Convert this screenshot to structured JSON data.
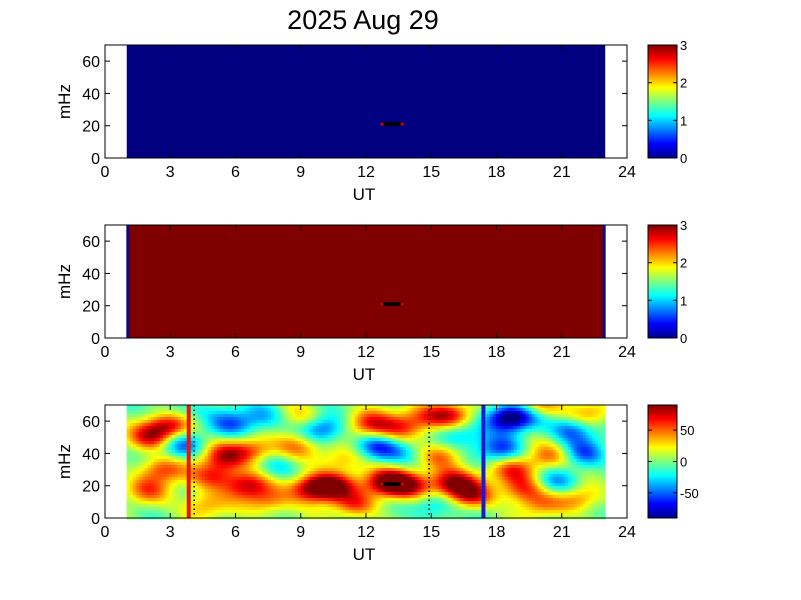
{
  "figure": {
    "title": "2025 Aug 29"
  },
  "chart_data": [
    {
      "type": "heatmap",
      "xlabel": "UT",
      "ylabel": "mHz",
      "xlim": [
        0,
        24
      ],
      "ylim": [
        0,
        70
      ],
      "xticks": [
        "0",
        "3",
        "6",
        "9",
        "12",
        "15",
        "18",
        "21",
        "24"
      ],
      "yticks": [
        "0",
        "20",
        "40",
        "60"
      ],
      "data_range_x": [
        1,
        23
      ],
      "fill_value": 0,
      "color_range": [
        0,
        3
      ],
      "colorbar_ticks": [
        "0",
        "1",
        "2",
        "3"
      ],
      "marker": {
        "x": 13.2,
        "y": 21
      },
      "edge_stripes": []
    },
    {
      "type": "heatmap",
      "xlabel": "UT",
      "ylabel": "mHz",
      "xlim": [
        0,
        24
      ],
      "ylim": [
        0,
        70
      ],
      "xticks": [
        "0",
        "3",
        "6",
        "9",
        "12",
        "15",
        "18",
        "21",
        "24"
      ],
      "yticks": [
        "0",
        "20",
        "40",
        "60"
      ],
      "data_range_x": [
        1,
        23
      ],
      "fill_value": 3,
      "color_range": [
        0,
        3
      ],
      "colorbar_ticks": [
        "0",
        "1",
        "2",
        "3"
      ],
      "marker": {
        "x": 13.2,
        "y": 21
      },
      "edge_stripes": [
        1.05,
        22.95
      ]
    },
    {
      "type": "heatmap",
      "xlabel": "UT",
      "ylabel": "mHz",
      "xlim": [
        0,
        24
      ],
      "ylim": [
        0,
        70
      ],
      "xticks": [
        "0",
        "3",
        "6",
        "9",
        "12",
        "15",
        "18",
        "21",
        "24"
      ],
      "yticks": [
        "0",
        "20",
        "40",
        "60"
      ],
      "data_range_x": [
        1,
        23
      ],
      "color_range": [
        -90,
        90
      ],
      "colorbar_ticks": [
        "50",
        "0",
        "-50"
      ],
      "colorbar_tick_values": [
        50,
        0,
        -50
      ],
      "marker": {
        "x": 13.2,
        "y": 21
      },
      "vertical_lines": [
        {
          "x": 3.85,
          "color": "#e8160c"
        },
        {
          "x": 17.4,
          "color": "#1a1ad6"
        }
      ],
      "dotted_lines": [
        4.1,
        14.9
      ],
      "blobs": [
        {
          "x": 2.2,
          "y": 50,
          "v": 70
        },
        {
          "x": 3.0,
          "y": 58,
          "v": 80
        },
        {
          "x": 2.6,
          "y": 30,
          "v": 55
        },
        {
          "x": 2.0,
          "y": 17,
          "v": 45
        },
        {
          "x": 3.5,
          "y": 45,
          "v": -55
        },
        {
          "x": 3.2,
          "y": 65,
          "v": -35
        },
        {
          "x": 5.5,
          "y": 38,
          "v": 65
        },
        {
          "x": 6.8,
          "y": 42,
          "v": 55
        },
        {
          "x": 5.0,
          "y": 26,
          "v": 60
        },
        {
          "x": 6.5,
          "y": 20,
          "v": 70
        },
        {
          "x": 5.8,
          "y": 58,
          "v": -50
        },
        {
          "x": 7.2,
          "y": 63,
          "v": -40
        },
        {
          "x": 8.0,
          "y": 32,
          "v": -30
        },
        {
          "x": 9.5,
          "y": 18,
          "v": 85
        },
        {
          "x": 10.5,
          "y": 20,
          "v": 80
        },
        {
          "x": 8.8,
          "y": 45,
          "v": 45
        },
        {
          "x": 10.0,
          "y": 55,
          "v": -60
        },
        {
          "x": 11.0,
          "y": 36,
          "v": 40
        },
        {
          "x": 9.0,
          "y": 62,
          "v": 35
        },
        {
          "x": 12.2,
          "y": 58,
          "v": 60
        },
        {
          "x": 13.5,
          "y": 55,
          "v": 50
        },
        {
          "x": 13.0,
          "y": 22,
          "v": 90
        },
        {
          "x": 14.0,
          "y": 20,
          "v": 75
        },
        {
          "x": 12.5,
          "y": 44,
          "v": -55
        },
        {
          "x": 13.8,
          "y": 40,
          "v": -30
        },
        {
          "x": 14.5,
          "y": 62,
          "v": 45
        },
        {
          "x": 15.8,
          "y": 64,
          "v": 70
        },
        {
          "x": 16.2,
          "y": 52,
          "v": -40
        },
        {
          "x": 15.5,
          "y": 38,
          "v": 50
        },
        {
          "x": 16.0,
          "y": 22,
          "v": 80
        },
        {
          "x": 16.8,
          "y": 14,
          "v": 70
        },
        {
          "x": 15.2,
          "y": 8,
          "v": -40
        },
        {
          "x": 18.5,
          "y": 62,
          "v": -85
        },
        {
          "x": 19.5,
          "y": 65,
          "v": -70
        },
        {
          "x": 19.8,
          "y": 68,
          "v": 90
        },
        {
          "x": 18.2,
          "y": 42,
          "v": -60
        },
        {
          "x": 18.8,
          "y": 30,
          "v": 55
        },
        {
          "x": 20.5,
          "y": 38,
          "v": 50
        },
        {
          "x": 19.2,
          "y": 18,
          "v": 60
        },
        {
          "x": 20.8,
          "y": 22,
          "v": -45
        },
        {
          "x": 21.5,
          "y": 55,
          "v": -55
        },
        {
          "x": 22.0,
          "y": 40,
          "v": -50
        },
        {
          "x": 22.3,
          "y": 64,
          "v": 40
        },
        {
          "x": 21.8,
          "y": 12,
          "v": 45
        },
        {
          "x": 11.5,
          "y": 8,
          "v": 50
        },
        {
          "x": 7.5,
          "y": 10,
          "v": 45
        },
        {
          "x": 4.5,
          "y": 8,
          "v": 40
        },
        {
          "x": 20.0,
          "y": 8,
          "v": 35
        }
      ]
    }
  ]
}
